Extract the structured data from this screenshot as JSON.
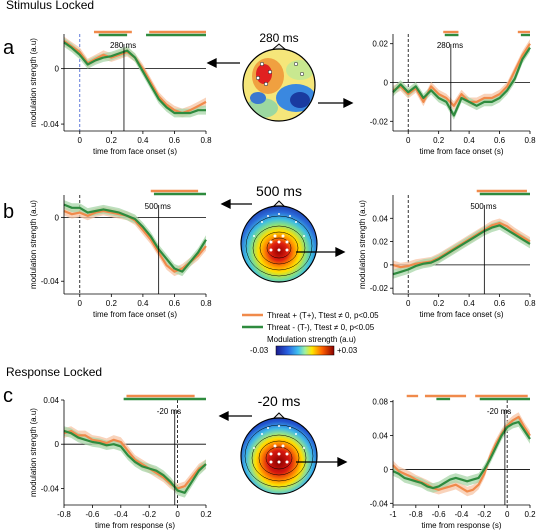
{
  "sections": {
    "stimulus": "Stimulus Locked",
    "response": "Response Locked"
  },
  "panel_letters": [
    "a",
    "b",
    "c"
  ],
  "topo_titles": [
    "280 ms",
    "500 ms",
    "-20 ms"
  ],
  "legend": {
    "items": [
      {
        "label": "Threat + (T+), Ttest ≠ 0, p<0.05",
        "color": "#f08a4b"
      },
      {
        "label": "Threat - (T-), Ttest ≠ 0, p<0.05",
        "color": "#2e8b3e"
      }
    ],
    "colorbar_title": "Modulation strength (a.u)",
    "colorbar_min": "-0.03",
    "colorbar_max": "+0.03"
  },
  "colors": {
    "threat_plus": "#f08a4b",
    "threat_minus": "#2e8b3e",
    "plus_band": "#f7c4a4",
    "minus_band": "#a8d5a8"
  },
  "chart_data": [
    {
      "id": "a-left",
      "type": "line",
      "xlabel": "time from face onset (s)",
      "ylabel": "modulation strength (a.u)",
      "xlim": [
        -0.1,
        0.8
      ],
      "ylim": [
        -0.045,
        0.025
      ],
      "xticks": [
        0,
        0.2,
        0.4,
        0.6,
        0.8
      ],
      "xtick_labels": [
        "0",
        "0.2",
        "0.4",
        "0.6",
        "0.8"
      ],
      "yticks": [
        -0.04,
        0
      ],
      "ytick_labels": [
        "-0.04",
        "0"
      ],
      "marker": {
        "x": 0.28,
        "label": "280 ms"
      },
      "sig_bars": [
        {
          "series": "T+",
          "from": 0.09,
          "to": 0.33
        },
        {
          "series": "T+",
          "from": 0.44,
          "to": 0.8
        },
        {
          "series": "T-",
          "from": 0.12,
          "to": 0.3
        },
        {
          "series": "T-",
          "from": 0.42,
          "to": 0.8
        }
      ],
      "x": [
        -0.1,
        -0.05,
        0,
        0.05,
        0.1,
        0.15,
        0.2,
        0.25,
        0.3,
        0.35,
        0.4,
        0.45,
        0.5,
        0.55,
        0.6,
        0.65,
        0.7,
        0.75,
        0.8
      ],
      "series": [
        {
          "name": "T+",
          "values": [
            0.02,
            0.016,
            0.012,
            0.004,
            0.007,
            0.01,
            0.008,
            0.01,
            0.012,
            0.008,
            0.0,
            -0.01,
            -0.02,
            -0.026,
            -0.03,
            -0.032,
            -0.03,
            -0.027,
            -0.024
          ]
        },
        {
          "name": "T-",
          "values": [
            0.019,
            0.015,
            0.01,
            0.003,
            0.006,
            0.008,
            0.009,
            0.011,
            0.013,
            0.008,
            -0.002,
            -0.012,
            -0.022,
            -0.028,
            -0.032,
            -0.032,
            -0.032,
            -0.03,
            -0.03
          ]
        }
      ]
    },
    {
      "id": "a-right",
      "type": "line",
      "xlabel": "time from face onset (s)",
      "ylabel": "",
      "xlim": [
        -0.1,
        0.8
      ],
      "ylim": [
        -0.025,
        0.025
      ],
      "xticks": [
        0,
        0.2,
        0.4,
        0.6,
        0.8
      ],
      "xtick_labels": [
        "0",
        "0.2",
        "0.4",
        "0.6",
        "0.8"
      ],
      "yticks": [
        -0.02,
        0,
        0.02
      ],
      "ytick_labels": [
        "-0.02",
        "0",
        "0.02"
      ],
      "marker": {
        "x": 0.28,
        "label": "280 ms"
      },
      "sig_bars": [
        {
          "series": "T+",
          "from": 0.23,
          "to": 0.33
        },
        {
          "series": "T+",
          "from": 0.72,
          "to": 0.8
        },
        {
          "series": "T-",
          "from": 0.24,
          "to": 0.33
        },
        {
          "series": "T-",
          "from": 0.74,
          "to": 0.8
        }
      ],
      "x": [
        -0.1,
        -0.05,
        0,
        0.05,
        0.1,
        0.15,
        0.2,
        0.25,
        0.3,
        0.35,
        0.4,
        0.45,
        0.5,
        0.55,
        0.6,
        0.65,
        0.7,
        0.75,
        0.8
      ],
      "series": [
        {
          "name": "T+",
          "values": [
            -0.004,
            -0.002,
            -0.006,
            -0.003,
            -0.01,
            -0.002,
            -0.006,
            -0.008,
            -0.012,
            -0.006,
            -0.01,
            -0.01,
            -0.008,
            -0.008,
            -0.006,
            -0.002,
            0.006,
            0.014,
            0.02
          ]
        },
        {
          "name": "T-",
          "values": [
            -0.005,
            -0.001,
            -0.005,
            -0.002,
            -0.008,
            -0.004,
            -0.008,
            -0.01,
            -0.017,
            -0.008,
            -0.01,
            -0.012,
            -0.01,
            -0.01,
            -0.008,
            -0.004,
            0.002,
            0.012,
            0.018
          ]
        }
      ]
    },
    {
      "id": "b-left",
      "type": "line",
      "xlabel": "time from face onset (s)",
      "ylabel": "modulation strength (a.u)",
      "xlim": [
        -0.1,
        0.8
      ],
      "ylim": [
        -0.048,
        0.014
      ],
      "xticks": [
        0,
        0.2,
        0.4,
        0.6,
        0.8
      ],
      "xtick_labels": [
        "0",
        "0.2",
        "0.4",
        "0.6",
        "0.8"
      ],
      "yticks": [
        -0.04,
        0
      ],
      "ytick_labels": [
        "-0.04",
        "0"
      ],
      "marker": {
        "x": 0.5,
        "label": "500 ms"
      },
      "sig_bars": [
        {
          "series": "T+",
          "from": 0.45,
          "to": 0.75
        },
        {
          "series": "T-",
          "from": 0.47,
          "to": 0.8
        }
      ],
      "x": [
        -0.1,
        -0.05,
        0,
        0.05,
        0.1,
        0.15,
        0.2,
        0.25,
        0.3,
        0.35,
        0.4,
        0.45,
        0.5,
        0.55,
        0.6,
        0.65,
        0.7,
        0.75,
        0.8
      ],
      "series": [
        {
          "name": "T+",
          "values": [
            0.004,
            0.002,
            0.003,
            0.001,
            0.003,
            0.004,
            0.003,
            0.002,
            0.001,
            -0.002,
            -0.008,
            -0.014,
            -0.022,
            -0.03,
            -0.034,
            -0.032,
            -0.028,
            -0.024,
            -0.018
          ]
        },
        {
          "name": "T-",
          "values": [
            0.008,
            0.006,
            0.006,
            0.003,
            0.004,
            0.005,
            0.004,
            0.003,
            0.001,
            -0.001,
            -0.006,
            -0.012,
            -0.02,
            -0.026,
            -0.032,
            -0.034,
            -0.028,
            -0.022,
            -0.014
          ]
        }
      ]
    },
    {
      "id": "b-right",
      "type": "line",
      "xlabel": "time from face onset (s)",
      "ylabel": "modulation strength (a.u)",
      "xlim": [
        -0.1,
        0.8
      ],
      "ylim": [
        -0.025,
        0.06
      ],
      "xticks": [
        0,
        0.2,
        0.4,
        0.6,
        0.8
      ],
      "xtick_labels": [
        "0",
        "0.2",
        "0.4",
        "0.6",
        "0.8"
      ],
      "yticks": [
        -0.02,
        0,
        0.02,
        0.04
      ],
      "ytick_labels": [
        "-0.02",
        "0",
        "0.02",
        "0.04"
      ],
      "marker": {
        "x": 0.5,
        "label": "500 ms"
      },
      "sig_bars": [
        {
          "series": "T+",
          "from": 0.45,
          "to": 0.78
        },
        {
          "series": "T-",
          "from": 0.47,
          "to": 0.8
        }
      ],
      "x": [
        -0.1,
        -0.05,
        0,
        0.05,
        0.1,
        0.15,
        0.2,
        0.25,
        0.3,
        0.35,
        0.4,
        0.45,
        0.5,
        0.55,
        0.6,
        0.65,
        0.7,
        0.75,
        0.8
      ],
      "series": [
        {
          "name": "T+",
          "values": [
            0.0,
            -0.002,
            -0.001,
            0.001,
            0.002,
            0.003,
            0.006,
            0.01,
            0.014,
            0.018,
            0.022,
            0.026,
            0.03,
            0.034,
            0.036,
            0.033,
            0.028,
            0.024,
            0.02
          ]
        },
        {
          "name": "T-",
          "values": [
            -0.008,
            -0.006,
            -0.004,
            -0.001,
            0.001,
            0.002,
            0.005,
            0.009,
            0.013,
            0.017,
            0.021,
            0.025,
            0.029,
            0.032,
            0.034,
            0.03,
            0.026,
            0.022,
            0.018
          ]
        }
      ]
    },
    {
      "id": "c-left",
      "type": "line",
      "xlabel": "time from response (s)",
      "ylabel": "modulation strength (a.u)",
      "xlim": [
        -0.8,
        0.2
      ],
      "ylim": [
        -0.055,
        0.04
      ],
      "xticks": [
        -0.8,
        -0.6,
        -0.4,
        -0.2,
        0,
        0.2
      ],
      "xtick_labels": [
        "-0.8",
        "-0.6",
        "-0.4",
        "-0.2",
        "0",
        "0.2"
      ],
      "yticks": [
        -0.04,
        0,
        0.04
      ],
      "ytick_labels": [
        "-0.04",
        "0",
        "0.04"
      ],
      "marker": {
        "x": -0.02,
        "label": "-20 ms"
      },
      "sig_bars": [
        {
          "series": "T+",
          "from": -0.36,
          "to": 0.12
        },
        {
          "series": "T-",
          "from": -0.38,
          "to": 0.2
        }
      ],
      "x": [
        -0.8,
        -0.75,
        -0.7,
        -0.65,
        -0.6,
        -0.55,
        -0.5,
        -0.45,
        -0.4,
        -0.35,
        -0.3,
        -0.25,
        -0.2,
        -0.15,
        -0.1,
        -0.05,
        0,
        0.05,
        0.1,
        0.15,
        0.2
      ],
      "series": [
        {
          "name": "T+",
          "values": [
            0.01,
            0.012,
            0.008,
            0.008,
            0.004,
            0.003,
            0.001,
            0.004,
            0.002,
            -0.006,
            -0.014,
            -0.018,
            -0.022,
            -0.026,
            -0.03,
            -0.036,
            -0.04,
            -0.038,
            -0.03,
            -0.022,
            -0.018
          ]
        },
        {
          "name": "T-",
          "values": [
            0.012,
            0.01,
            0.006,
            0.004,
            0.002,
            0.001,
            -0.001,
            0.0,
            -0.002,
            -0.01,
            -0.016,
            -0.02,
            -0.022,
            -0.024,
            -0.028,
            -0.034,
            -0.042,
            -0.044,
            -0.034,
            -0.024,
            -0.018
          ]
        }
      ]
    },
    {
      "id": "c-right",
      "type": "line",
      "xlabel": "time from response (s)",
      "ylabel": "",
      "xlim": [
        -1,
        0.2
      ],
      "ylim": [
        -0.042,
        0.082
      ],
      "xticks": [
        -1,
        -0.8,
        -0.6,
        -0.4,
        -0.2,
        0,
        0.2
      ],
      "xtick_labels": [
        "-1",
        "-0.8",
        "-0.6",
        "-0.4",
        "-0.2",
        "0",
        "0.2"
      ],
      "yticks": [
        -0.04,
        0,
        0.04,
        0.08
      ],
      "ytick_labels": [
        "-0.04",
        "0",
        "0.04",
        "0.08"
      ],
      "marker": {
        "x": -0.02,
        "label": "-20 ms"
      },
      "sig_bars": [
        {
          "series": "T+",
          "from": -0.88,
          "to": -0.78
        },
        {
          "series": "T+",
          "from": -0.72,
          "to": -0.36
        },
        {
          "series": "T+",
          "from": -0.28,
          "to": 0.18
        },
        {
          "series": "T-",
          "from": -0.62,
          "to": -0.5
        },
        {
          "series": "T-",
          "from": -0.24,
          "to": 0.2
        }
      ],
      "x": [
        -1,
        -0.95,
        -0.9,
        -0.85,
        -0.8,
        -0.75,
        -0.7,
        -0.65,
        -0.6,
        -0.55,
        -0.5,
        -0.45,
        -0.4,
        -0.35,
        -0.3,
        -0.25,
        -0.2,
        -0.15,
        -0.1,
        -0.05,
        0,
        0.05,
        0.1,
        0.15,
        0.2
      ],
      "series": [
        {
          "name": "T+",
          "values": [
            0.005,
            -0.002,
            -0.005,
            -0.008,
            -0.012,
            -0.015,
            -0.018,
            -0.022,
            -0.024,
            -0.022,
            -0.02,
            -0.018,
            -0.022,
            -0.026,
            -0.024,
            -0.018,
            -0.005,
            0.015,
            0.03,
            0.042,
            0.052,
            0.058,
            0.062,
            0.05,
            0.04
          ]
        },
        {
          "name": "T-",
          "values": [
            -0.002,
            -0.005,
            -0.01,
            -0.012,
            -0.014,
            -0.016,
            -0.02,
            -0.022,
            -0.02,
            -0.016,
            -0.012,
            -0.01,
            -0.012,
            -0.014,
            -0.012,
            -0.01,
            0.0,
            0.012,
            0.026,
            0.04,
            0.05,
            0.054,
            0.056,
            0.046,
            0.036
          ]
        }
      ]
    }
  ]
}
